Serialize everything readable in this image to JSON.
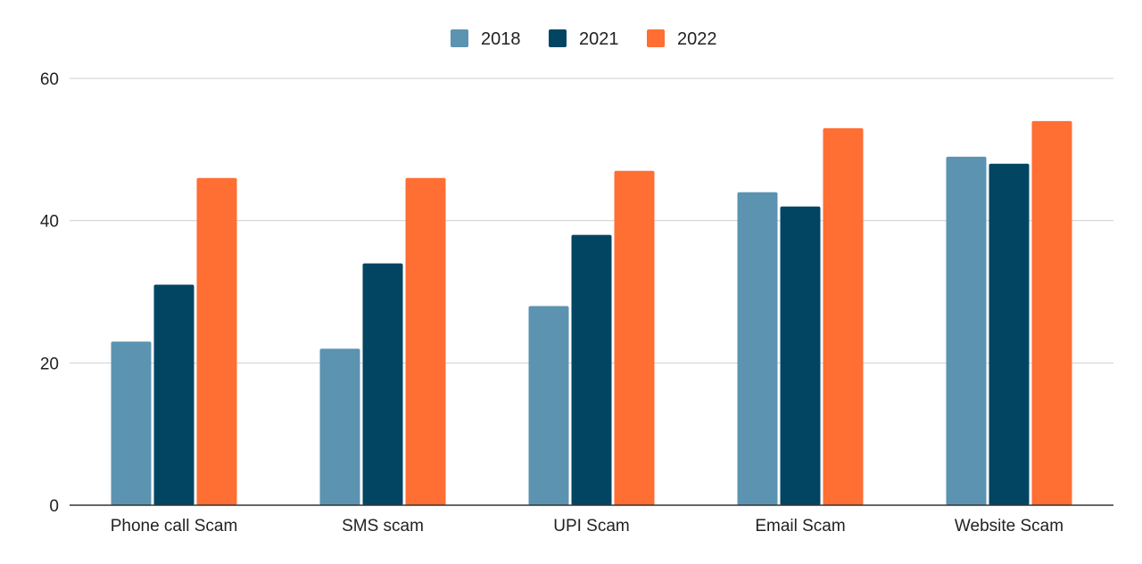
{
  "chart_data": {
    "type": "bar",
    "title": "",
    "xlabel": "",
    "ylabel": "",
    "categories": [
      "Phone call Scam",
      "SMS scam",
      "UPI Scam",
      "Email Scam",
      "Website Scam"
    ],
    "series": [
      {
        "name": "2018",
        "color": "#5b93b1",
        "values": [
          23,
          22,
          28,
          44,
          49
        ]
      },
      {
        "name": "2021",
        "color": "#024563",
        "values": [
          31,
          34,
          38,
          42,
          48
        ]
      },
      {
        "name": "2022",
        "color": "#ff6e33",
        "values": [
          46,
          46,
          47,
          53,
          54
        ]
      }
    ],
    "ylim": [
      0,
      60
    ],
    "yticks": [
      "0",
      "20",
      "40",
      "60"
    ],
    "grid": true,
    "legend_position": "top-center"
  }
}
